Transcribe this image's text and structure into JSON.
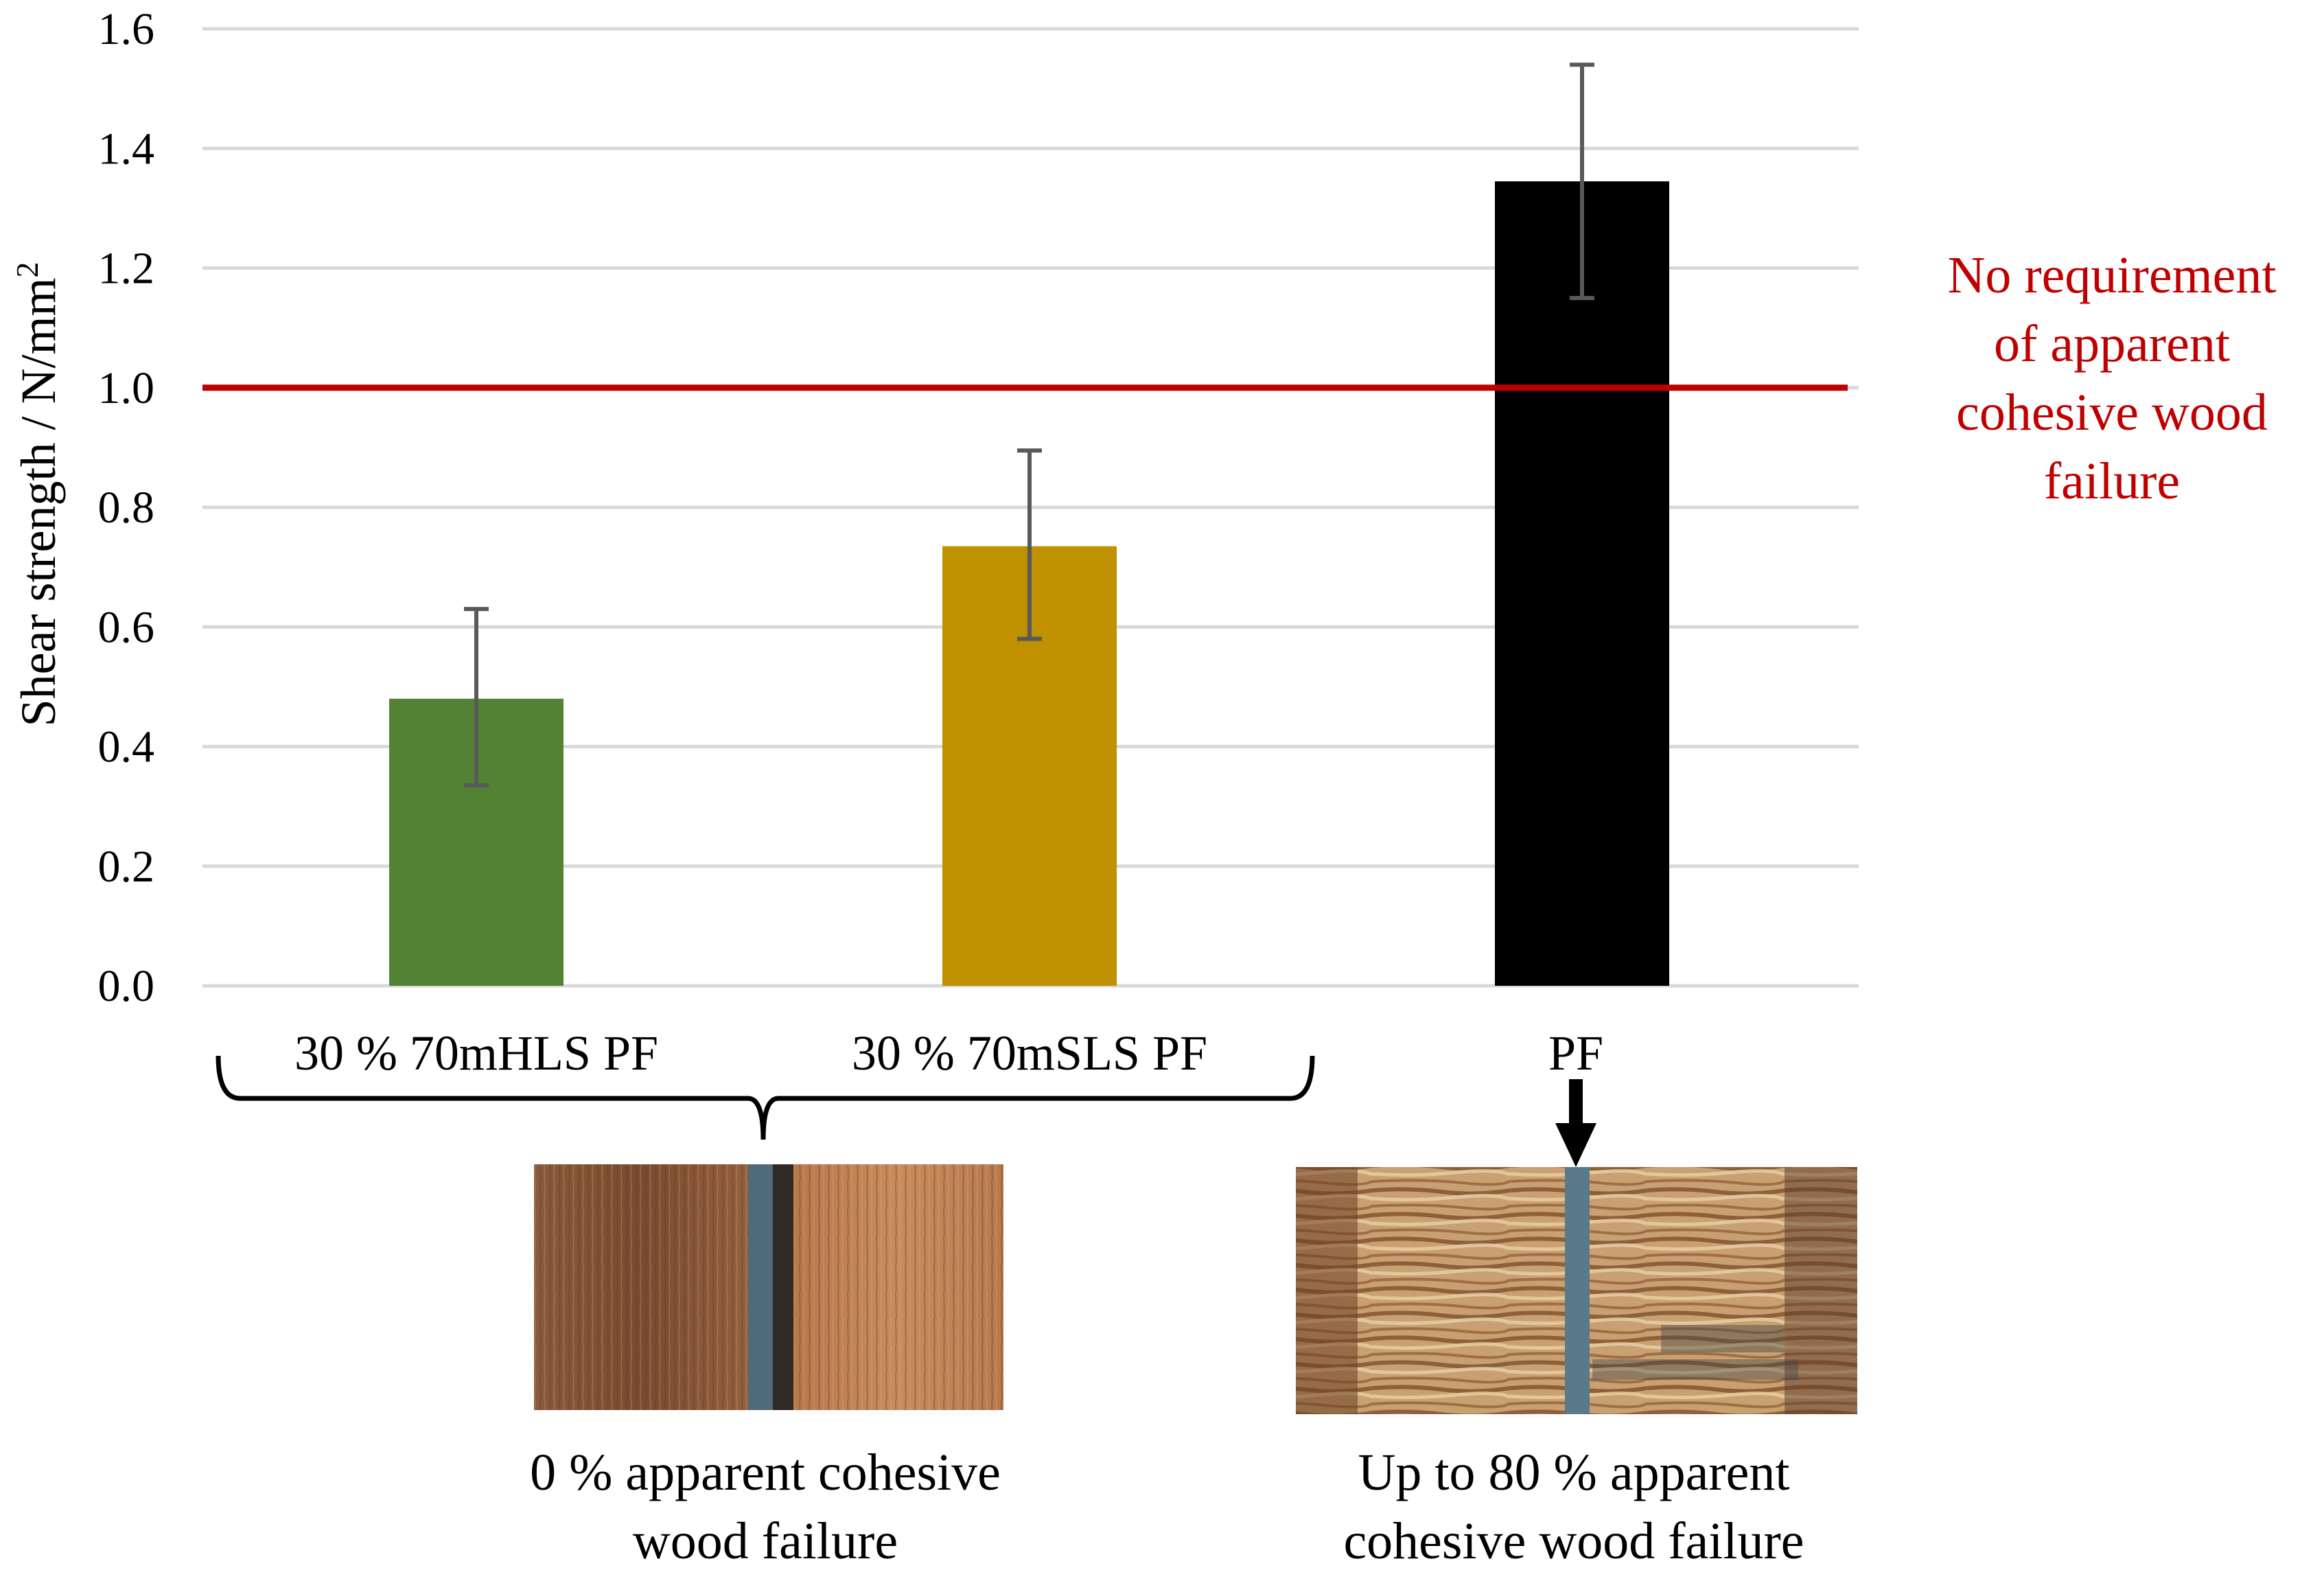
{
  "chart_data": {
    "type": "bar",
    "title": "",
    "xlabel": "",
    "ylabel": "Shear strength / N/mm",
    "ylabel_superscript": "2",
    "ylim": [
      0,
      1.6
    ],
    "yticks": [
      "0.0",
      "0.2",
      "0.4",
      "0.6",
      "0.8",
      "1.0",
      "1.2",
      "1.4",
      "1.6"
    ],
    "grid": true,
    "categories": [
      "30 % 70mHLS PF",
      "30 % 70mSLS PF",
      "PF"
    ],
    "values": [
      0.48,
      0.735,
      1.345
    ],
    "error_low": [
      0.335,
      0.58,
      1.15
    ],
    "error_high": [
      0.63,
      0.895,
      1.54
    ],
    "bar_colors": [
      "#548235",
      "#bf9000",
      "#000000"
    ],
    "error_color": "#595959",
    "reference_line": {
      "value": 1.0,
      "color": "#c00000",
      "label_lines": [
        "No requirement",
        "of apparent",
        "cohesive wood",
        "failure"
      ]
    }
  },
  "annotations": {
    "left_caption_lines": [
      "0 % apparent cohesive",
      "wood failure"
    ],
    "right_caption_lines": [
      "Up to 80 % apparent",
      "cohesive wood failure"
    ]
  },
  "colors": {
    "grid": "#d9d9d9",
    "axis": "#d9d9d9",
    "text": "#000000"
  }
}
